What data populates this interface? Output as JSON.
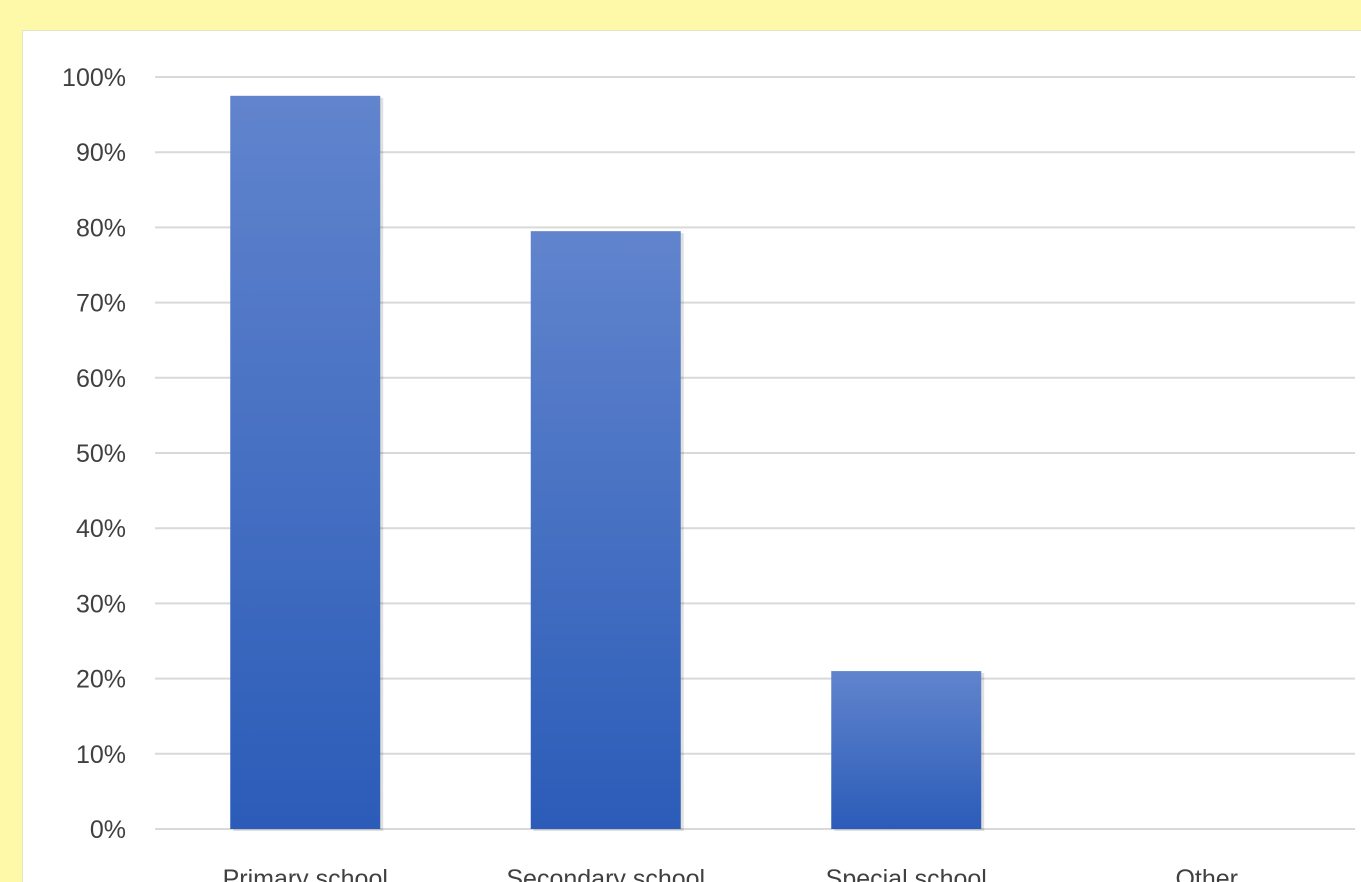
{
  "chart_data": {
    "type": "bar",
    "categories": [
      "Primary school",
      "Secondary school",
      "Special school",
      "Other"
    ],
    "values": [
      97.5,
      79.5,
      21,
      0
    ],
    "ylim": [
      0,
      100
    ],
    "yticks": [
      "0%",
      "10%",
      "20%",
      "30%",
      "40%",
      "50%",
      "60%",
      "70%",
      "80%",
      "90%",
      "100%"
    ],
    "grid": true,
    "legend": "none",
    "colors": {
      "bar_top": "#6184cd",
      "bar_bottom": "#2b5cb8",
      "grid": "#d9d9d9",
      "background": "#fdf9a8",
      "plot_background": "#ffffff"
    }
  }
}
